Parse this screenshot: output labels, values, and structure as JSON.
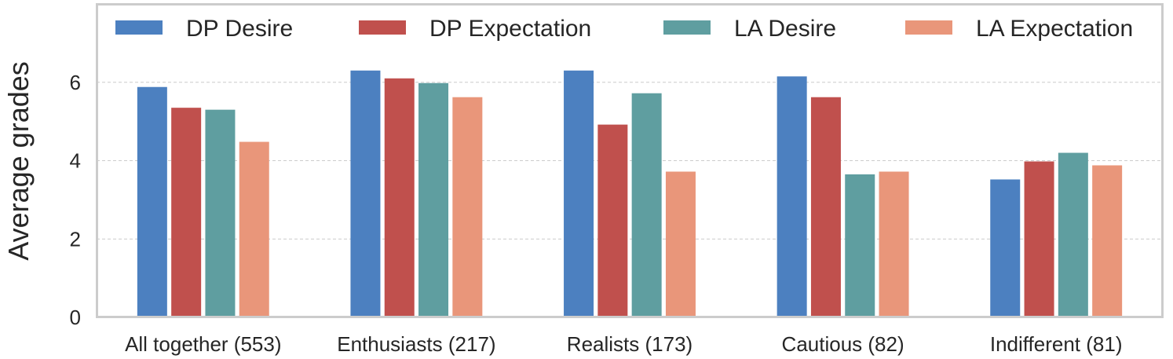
{
  "chart_data": {
    "type": "bar",
    "title": "",
    "xlabel": "",
    "ylabel": "Average grades",
    "ylim": [
      0,
      8
    ],
    "yticks": [
      0,
      2,
      4,
      6
    ],
    "grid": true,
    "legend_position": "top",
    "categories": [
      "All together (553)",
      "Enthusiasts (217)",
      "Realists (173)",
      "Cautious (82)",
      "Indifferent (81)"
    ],
    "series": [
      {
        "name": "DP Desire",
        "color": "#4c80c0",
        "values": [
          5.88,
          6.3,
          6.3,
          6.15,
          3.52
        ]
      },
      {
        "name": "DP Expectation",
        "color": "#c0504d",
        "values": [
          5.35,
          6.1,
          4.92,
          5.62,
          3.98
        ]
      },
      {
        "name": "LA Desire",
        "color": "#5f9ea0",
        "values": [
          5.3,
          5.98,
          5.72,
          3.65,
          4.2
        ]
      },
      {
        "name": "LA Expectation",
        "color": "#e9967a",
        "values": [
          4.48,
          5.62,
          3.72,
          3.72,
          3.88
        ]
      }
    ]
  }
}
